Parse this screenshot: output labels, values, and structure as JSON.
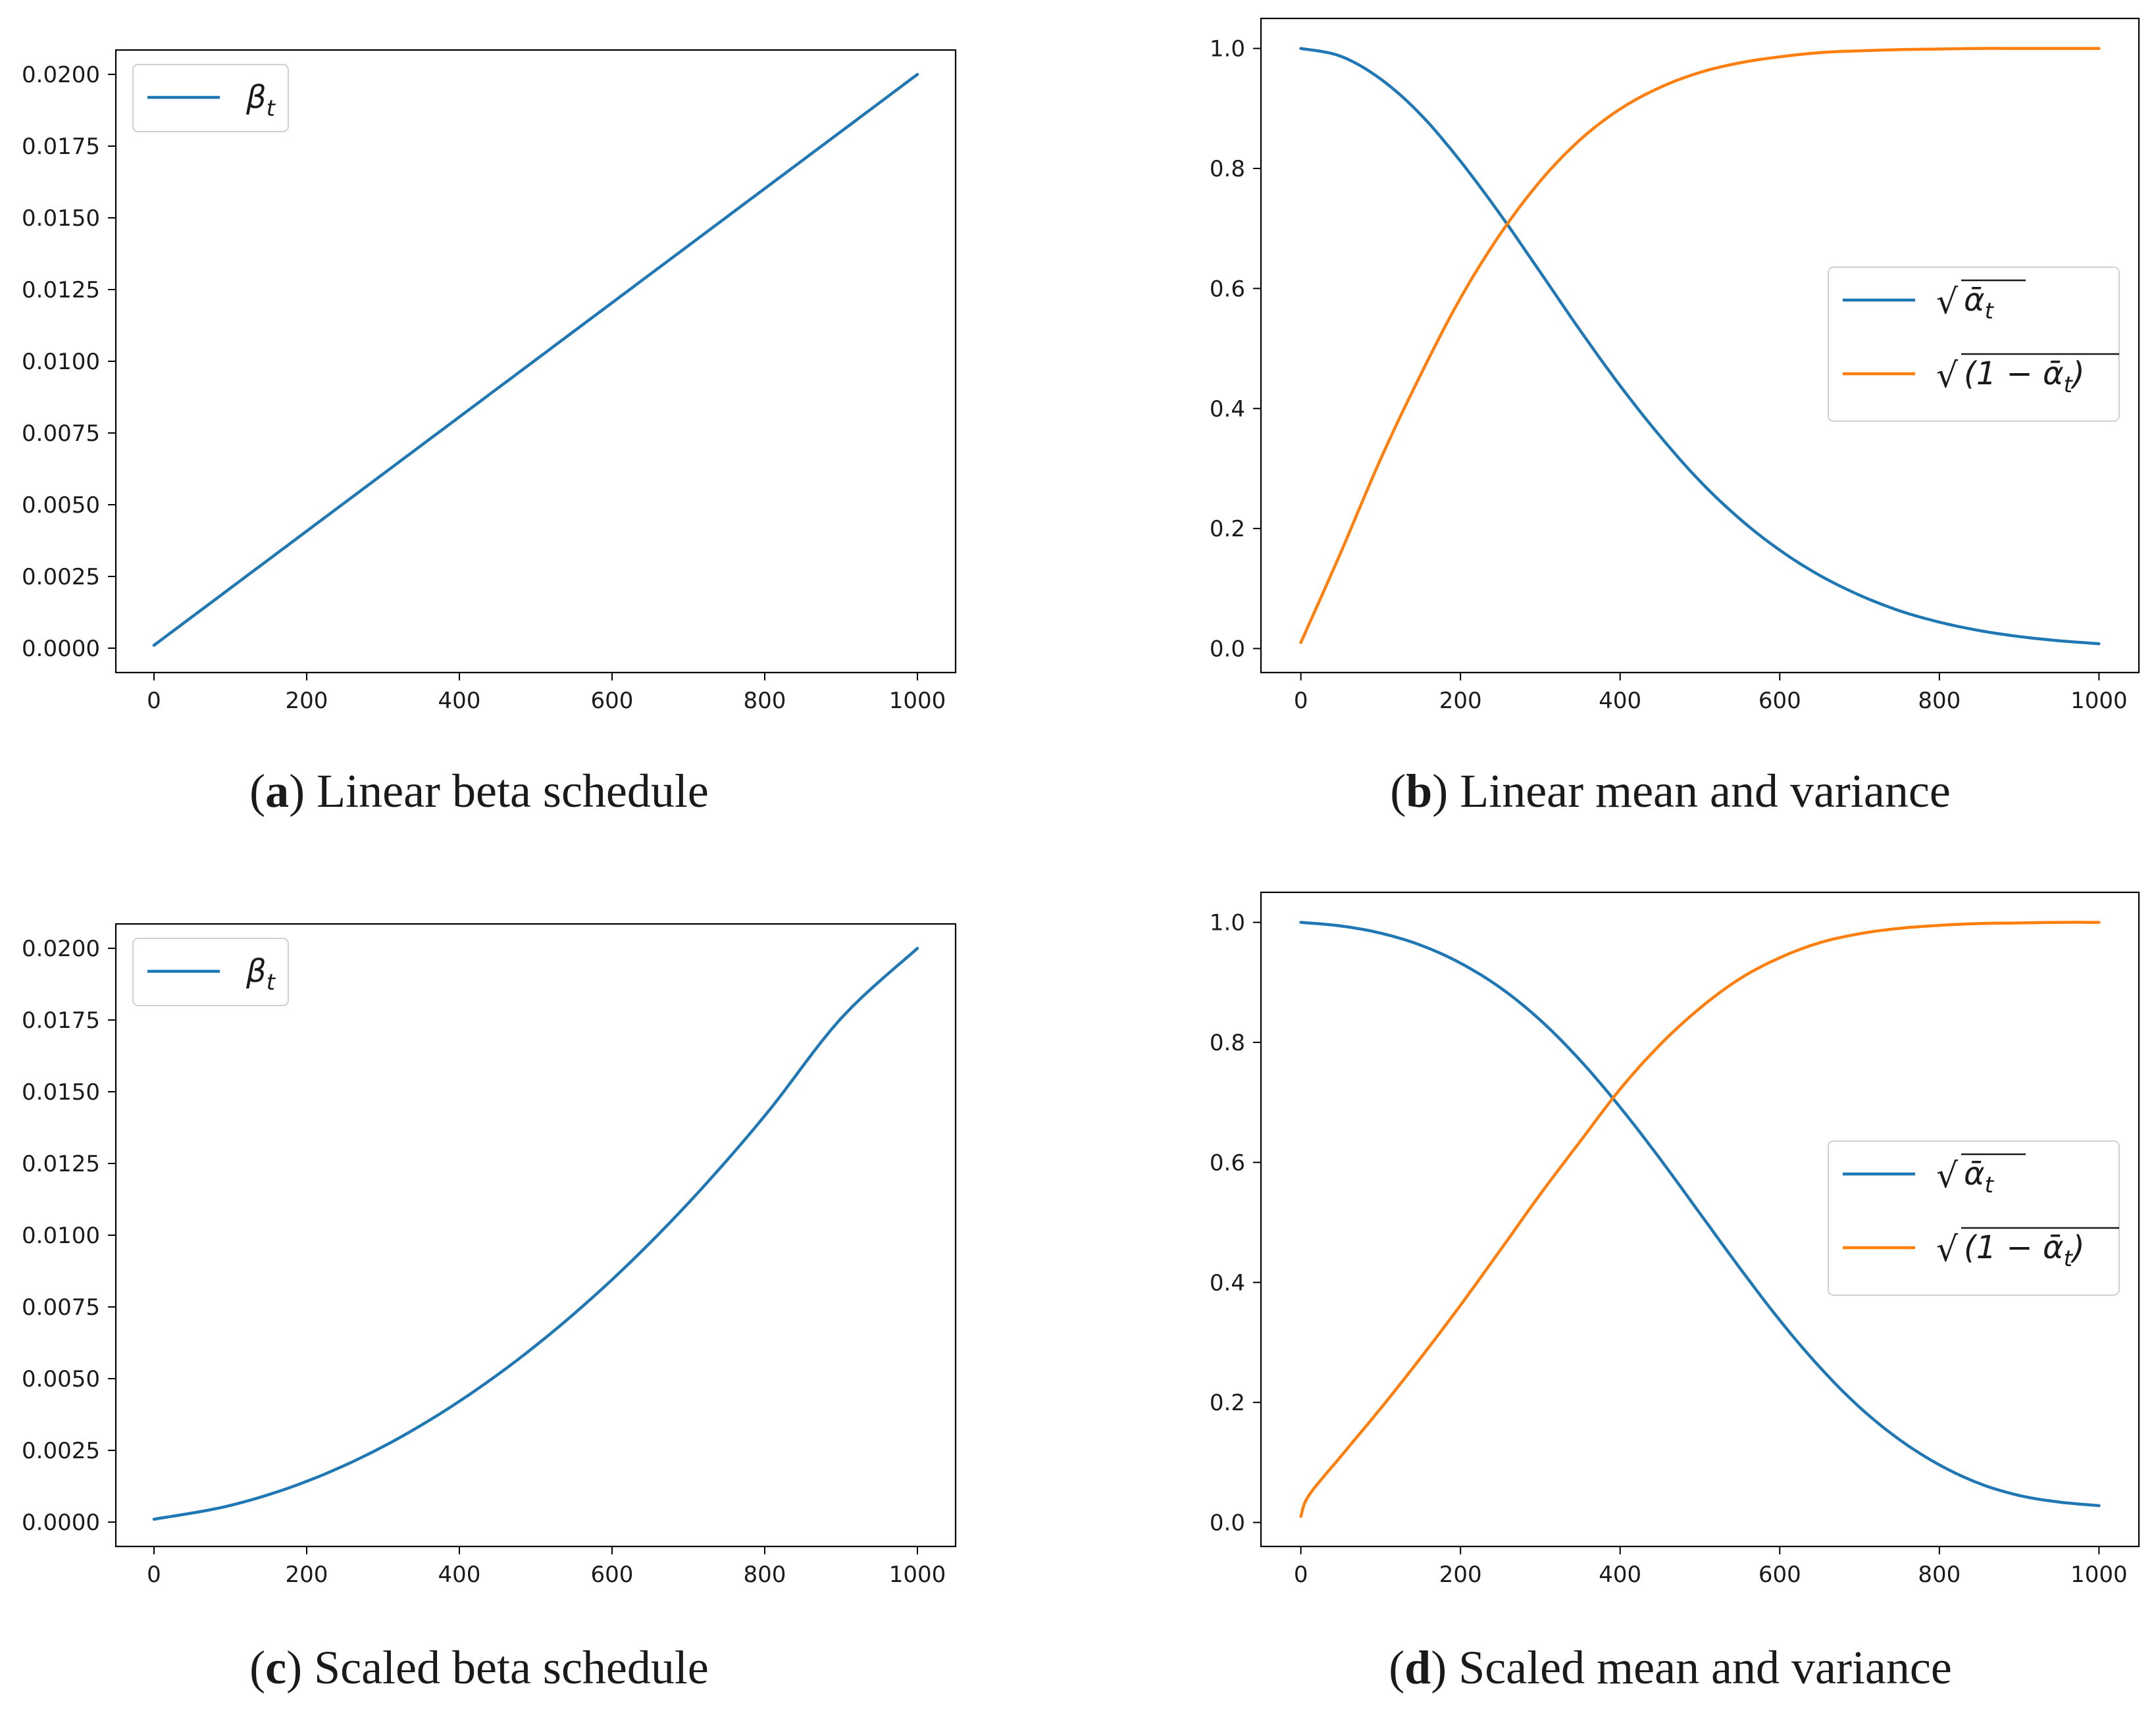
{
  "chart_data": [
    {
      "id": "a",
      "type": "line",
      "caption_label": "a",
      "caption_text": "Linear beta schedule",
      "xlim": [
        -50,
        1050
      ],
      "ylim": [
        -0.00085,
        0.02085
      ],
      "x_ticks": [
        0,
        200,
        400,
        600,
        800,
        1000
      ],
      "x_tick_labels": [
        "0",
        "200",
        "400",
        "600",
        "800",
        "1000"
      ],
      "y_ticks": [
        0.0,
        0.0025,
        0.005,
        0.0075,
        0.01,
        0.0125,
        0.015,
        0.0175,
        0.02
      ],
      "y_tick_labels": [
        "0.0000",
        "0.0025",
        "0.0050",
        "0.0075",
        "0.0100",
        "0.0125",
        "0.0150",
        "0.0175",
        "0.0200"
      ],
      "legend_position": "upper left",
      "series": [
        {
          "name": "β",
          "name_sub": "t",
          "color": "#1f77b4",
          "x": [
            0,
            100,
            200,
            300,
            400,
            500,
            600,
            700,
            800,
            900,
            1000
          ],
          "y": [
            0.0001,
            0.00209,
            0.00408,
            0.00607,
            0.00806,
            0.01005,
            0.01204,
            0.01403,
            0.01602,
            0.01801,
            0.02
          ]
        }
      ]
    },
    {
      "id": "b",
      "type": "line",
      "caption_label": "b",
      "caption_text": "Linear mean and variance",
      "xlim": [
        -50,
        1050
      ],
      "ylim": [
        -0.04,
        1.05
      ],
      "x_ticks": [
        0,
        200,
        400,
        600,
        800,
        1000
      ],
      "x_tick_labels": [
        "0",
        "200",
        "400",
        "600",
        "800",
        "1000"
      ],
      "y_ticks": [
        0.0,
        0.2,
        0.4,
        0.6,
        0.8,
        1.0
      ],
      "y_tick_labels": [
        "0.0",
        "0.2",
        "0.4",
        "0.6",
        "0.8",
        "1.0"
      ],
      "legend_position": "center right",
      "series": [
        {
          "name": "ᾱ",
          "name_sub": "t",
          "name_form": "sqrt_alpha",
          "color": "#1f77b4",
          "x": [
            0,
            50,
            100,
            150,
            200,
            250,
            300,
            350,
            400,
            450,
            500,
            550,
            600,
            650,
            700,
            750,
            800,
            850,
            900,
            950,
            1000
          ],
          "y": [
            1.0,
            0.987,
            0.949,
            0.89,
            0.812,
            0.723,
            0.627,
            0.53,
            0.438,
            0.354,
            0.279,
            0.216,
            0.164,
            0.122,
            0.089,
            0.063,
            0.044,
            0.03,
            0.02,
            0.013,
            0.008
          ]
        },
        {
          "name": "(1 − ᾱ",
          "name_sub": "t",
          "name_form": "sqrt_one_minus",
          "color": "#ff7f0e",
          "x": [
            0,
            50,
            100,
            150,
            200,
            250,
            300,
            350,
            400,
            450,
            500,
            550,
            600,
            650,
            700,
            750,
            800,
            850,
            900,
            950,
            1000
          ],
          "y": [
            0.01,
            0.16,
            0.316,
            0.456,
            0.584,
            0.691,
            0.779,
            0.848,
            0.899,
            0.935,
            0.96,
            0.976,
            0.986,
            0.993,
            0.996,
            0.998,
            0.999,
            1.0,
            1.0,
            1.0,
            1.0
          ]
        }
      ]
    },
    {
      "id": "c",
      "type": "line",
      "caption_label": "c",
      "caption_text": "Scaled beta schedule",
      "xlim": [
        -50,
        1050
      ],
      "ylim": [
        -0.00085,
        0.02085
      ],
      "x_ticks": [
        0,
        200,
        400,
        600,
        800,
        1000
      ],
      "x_tick_labels": [
        "0",
        "200",
        "400",
        "600",
        "800",
        "1000"
      ],
      "y_ticks": [
        0.0,
        0.0025,
        0.005,
        0.0075,
        0.01,
        0.0125,
        0.015,
        0.0175,
        0.02
      ],
      "y_tick_labels": [
        "0.0000",
        "0.0025",
        "0.0050",
        "0.0075",
        "0.0100",
        "0.0125",
        "0.0150",
        "0.0175",
        "0.0200"
      ],
      "legend_position": "upper left",
      "series": [
        {
          "name": "β",
          "name_sub": "t",
          "color": "#1f77b4",
          "x": [
            0,
            100,
            200,
            300,
            400,
            500,
            600,
            700,
            800,
            900,
            1000
          ],
          "y": [
            0.0001,
            0.00058,
            0.00142,
            0.00263,
            0.00421,
            0.00615,
            0.00845,
            0.01112,
            0.01416,
            0.01756,
            0.02
          ]
        }
      ]
    },
    {
      "id": "d",
      "type": "line",
      "caption_label": "d",
      "caption_text": "Scaled mean and variance",
      "xlim": [
        -50,
        1050
      ],
      "ylim": [
        -0.04,
        1.05
      ],
      "x_ticks": [
        0,
        200,
        400,
        600,
        800,
        1000
      ],
      "x_tick_labels": [
        "0",
        "200",
        "400",
        "600",
        "800",
        "1000"
      ],
      "y_ticks": [
        0.0,
        0.2,
        0.4,
        0.6,
        0.8,
        1.0
      ],
      "y_tick_labels": [
        "0.0",
        "0.2",
        "0.4",
        "0.6",
        "0.8",
        "1.0"
      ],
      "legend_position": "center right",
      "series": [
        {
          "name": "ᾱ",
          "name_sub": "t",
          "name_form": "sqrt_alpha",
          "color": "#1f77b4",
          "x": [
            0,
            50,
            100,
            150,
            200,
            250,
            300,
            350,
            400,
            450,
            500,
            550,
            600,
            650,
            700,
            750,
            800,
            850,
            900,
            950,
            1000
          ],
          "y": [
            1.0,
            0.994,
            0.982,
            0.962,
            0.932,
            0.891,
            0.837,
            0.77,
            0.692,
            0.606,
            0.515,
            0.424,
            0.337,
            0.259,
            0.192,
            0.138,
            0.096,
            0.065,
            0.045,
            0.034,
            0.028
          ]
        },
        {
          "name": "(1 − ᾱ",
          "name_sub": "t",
          "name_form": "sqrt_one_minus",
          "color": "#ff7f0e",
          "x": [
            0,
            10,
            50,
            100,
            150,
            200,
            250,
            300,
            350,
            400,
            450,
            500,
            550,
            600,
            650,
            700,
            750,
            800,
            850,
            900,
            950,
            1000
          ],
          "y": [
            0.01,
            0.045,
            0.11,
            0.19,
            0.274,
            0.362,
            0.454,
            0.547,
            0.635,
            0.722,
            0.796,
            0.857,
            0.906,
            0.941,
            0.966,
            0.981,
            0.99,
            0.995,
            0.998,
            0.999,
            1.0,
            1.0
          ]
        }
      ]
    }
  ]
}
